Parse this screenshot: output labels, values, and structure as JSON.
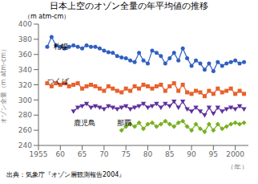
{
  "chart_data": {
    "type": "line",
    "title": "日本上空のオゾン全量の年平均値の推移",
    "y_units": "（m atm-cm）",
    "y_label": "オゾン全量（m atm-cm）",
    "x_label": "（年）",
    "source": "出典：気象庁『オゾン層観測報告2004』",
    "xlim": [
      1955,
      2003
    ],
    "ylim": [
      240,
      400
    ],
    "xticks": [
      1955,
      {
        "value": 1960,
        "label": "60"
      },
      {
        "value": 1965,
        "label": "65"
      },
      {
        "value": 1970,
        "label": "70"
      },
      {
        "value": 1975,
        "label": "75"
      },
      {
        "value": 1980,
        "label": "80"
      },
      {
        "value": 1985,
        "label": "85"
      },
      {
        "value": 1990,
        "label": "90"
      },
      {
        "value": 1995,
        "label": "95"
      },
      2000
    ],
    "yticks": [
      240,
      260,
      280,
      300,
      320,
      340,
      360,
      380,
      400
    ],
    "grid": false,
    "series": [
      {
        "color": "#3060c0",
        "marker": "circle",
        "x": [
          1957,
          1958,
          1959,
          1960,
          1961,
          1962,
          1963,
          1964,
          1965,
          1966,
          1967,
          1968,
          1969,
          1970,
          1971,
          1972,
          1973,
          1974,
          1975,
          1976,
          1977,
          1978,
          1979,
          1980,
          1981,
          1982,
          1983,
          1984,
          1985,
          1986,
          1987,
          1988,
          1989,
          1990,
          1991,
          1992,
          1993,
          1994,
          1995,
          1996,
          1997,
          1998,
          1999,
          2000,
          2001,
          2002
        ],
        "values": [
          370,
          383,
          372,
          370,
          368,
          370,
          372,
          370,
          368,
          372,
          370,
          370,
          368,
          365,
          363,
          362,
          358,
          356,
          355,
          352,
          350,
          362,
          352,
          348,
          365,
          362,
          358,
          348,
          355,
          362,
          352,
          368,
          355,
          345,
          352,
          348,
          340,
          348,
          338,
          350,
          345,
          348,
          350,
          352,
          348,
          350
        ]
      },
      {
        "color": "#e8602c",
        "marker": "square",
        "x": [
          1957,
          1958,
          1959,
          1960,
          1961,
          1962,
          1963,
          1964,
          1965,
          1966,
          1967,
          1968,
          1969,
          1970,
          1971,
          1972,
          1973,
          1974,
          1975,
          1976,
          1977,
          1978,
          1979,
          1980,
          1981,
          1982,
          1983,
          1984,
          1985,
          1986,
          1987,
          1988,
          1989,
          1990,
          1991,
          1992,
          1993,
          1994,
          1995,
          1996,
          1997,
          1998,
          1999,
          2000,
          2001,
          2002
        ],
        "values": [
          322,
          318,
          322,
          320,
          322,
          318,
          320,
          322,
          315,
          318,
          320,
          318,
          315,
          312,
          318,
          315,
          312,
          310,
          315,
          312,
          318,
          315,
          320,
          318,
          315,
          318,
          320,
          312,
          318,
          322,
          312,
          320,
          310,
          308,
          312,
          310,
          305,
          312,
          308,
          315,
          310,
          312,
          315,
          308,
          312,
          308
        ]
      },
      {
        "color": "#6030a0",
        "marker": "triangle-down",
        "x": [
          1963,
          1964,
          1965,
          1966,
          1967,
          1968,
          1969,
          1970,
          1971,
          1972,
          1973,
          1974,
          1975,
          1976,
          1977,
          1978,
          1979,
          1980,
          1981,
          1982,
          1983,
          1984,
          1985,
          1986,
          1987,
          1988,
          1989,
          1990,
          1991,
          1992,
          1993,
          1994,
          1995,
          1996,
          1997,
          1998,
          1999,
          2000,
          2001,
          2002
        ],
        "values": [
          285,
          290,
          292,
          295,
          290,
          292,
          290,
          288,
          292,
          290,
          288,
          290,
          292,
          288,
          290,
          292,
          295,
          290,
          292,
          295,
          290,
          295,
          292,
          298,
          290,
          298,
          288,
          285,
          290,
          285,
          280,
          290,
          282,
          290,
          285,
          288,
          290,
          288,
          292,
          288
        ]
      },
      {
        "color": "#78b020",
        "marker": "diamond",
        "x": [
          1974,
          1975,
          1976,
          1977,
          1978,
          1979,
          1980,
          1981,
          1982,
          1983,
          1984,
          1985,
          1986,
          1987,
          1988,
          1989,
          1990,
          1991,
          1992,
          1993,
          1994,
          1995,
          1996,
          1997,
          1998,
          1999,
          2000,
          2001,
          2002
        ],
        "values": [
          260,
          265,
          268,
          265,
          270,
          262,
          268,
          270,
          265,
          268,
          272,
          268,
          265,
          270,
          272,
          265,
          260,
          268,
          262,
          258,
          268,
          260,
          268,
          262,
          265,
          268,
          270,
          268,
          270
        ]
      }
    ],
    "annotations": [
      {
        "text": "札幌",
        "x": 1958.5,
        "y": 374
      },
      {
        "text": "つくば",
        "x": 1957,
        "y": 328
      },
      {
        "text": "鹿児島",
        "x": 1963,
        "y": 273
      },
      {
        "text": "那覇",
        "x": 1973,
        "y": 273
      }
    ]
  }
}
